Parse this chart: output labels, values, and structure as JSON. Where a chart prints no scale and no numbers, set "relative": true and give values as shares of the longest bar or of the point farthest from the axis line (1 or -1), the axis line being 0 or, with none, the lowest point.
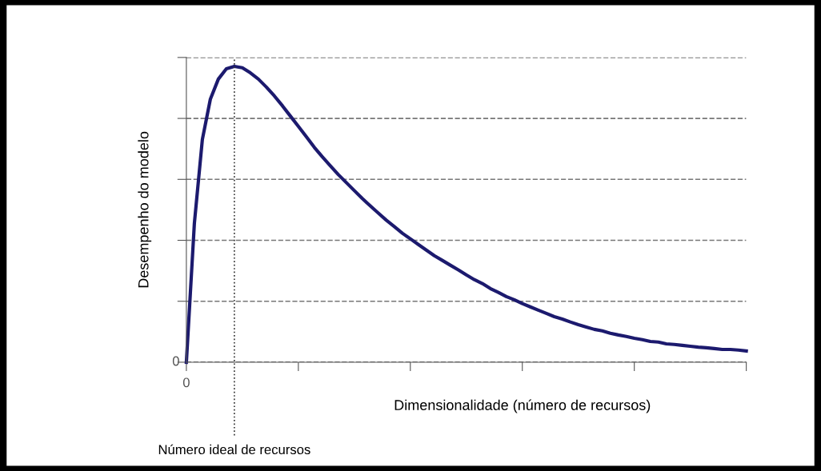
{
  "chart_data": {
    "type": "line",
    "relative": true,
    "xlabel": "Dimensionalidade (número de recursos)",
    "ylabel": "Desempenho do modelo",
    "categories": [
      null,
      null,
      null,
      null,
      null,
      null,
      null,
      null,
      null,
      null,
      null,
      null,
      null,
      null,
      null,
      null,
      null,
      null,
      null,
      null,
      null,
      null,
      null,
      null,
      null,
      null,
      null,
      null,
      null,
      null,
      null,
      null,
      null,
      null,
      null,
      null,
      null,
      null,
      null,
      null,
      null,
      null,
      null,
      null,
      null,
      null,
      null,
      null,
      null,
      null,
      null,
      null,
      null,
      null,
      null,
      null,
      null,
      null,
      null,
      null,
      null,
      null,
      null,
      null,
      null,
      null,
      null,
      null,
      null,
      null,
      null
    ],
    "series": [
      {
        "color": "#1c1a6e",
        "values": [
          0,
          0.469,
          0.753,
          0.889,
          0.957,
          0.992,
          1.0,
          0.995,
          0.978,
          0.957,
          0.93,
          0.9,
          0.867,
          0.832,
          0.797,
          0.762,
          0.726,
          0.694,
          0.664,
          0.634,
          0.607,
          0.58,
          0.553,
          0.528,
          0.504,
          0.48,
          0.458,
          0.436,
          0.417,
          0.398,
          0.379,
          0.36,
          0.344,
          0.328,
          0.312,
          0.295,
          0.279,
          0.266,
          0.249,
          0.236,
          0.222,
          0.211,
          0.198,
          0.187,
          0.176,
          0.165,
          0.154,
          0.146,
          0.136,
          0.127,
          0.119,
          0.111,
          0.106,
          0.098,
          0.092,
          0.087,
          0.081,
          0.076,
          0.07,
          0.068,
          0.062,
          0.06,
          0.057,
          0.054,
          0.051,
          0.049,
          0.046,
          0.043,
          0.043,
          0.041,
          0.038
        ]
      }
    ],
    "annotations": [
      "0",
      "0",
      "Número ideal de recursos"
    ],
    "grid": "y",
    "marker": "none",
    "line_style": "solid",
    "legend": false
  }
}
